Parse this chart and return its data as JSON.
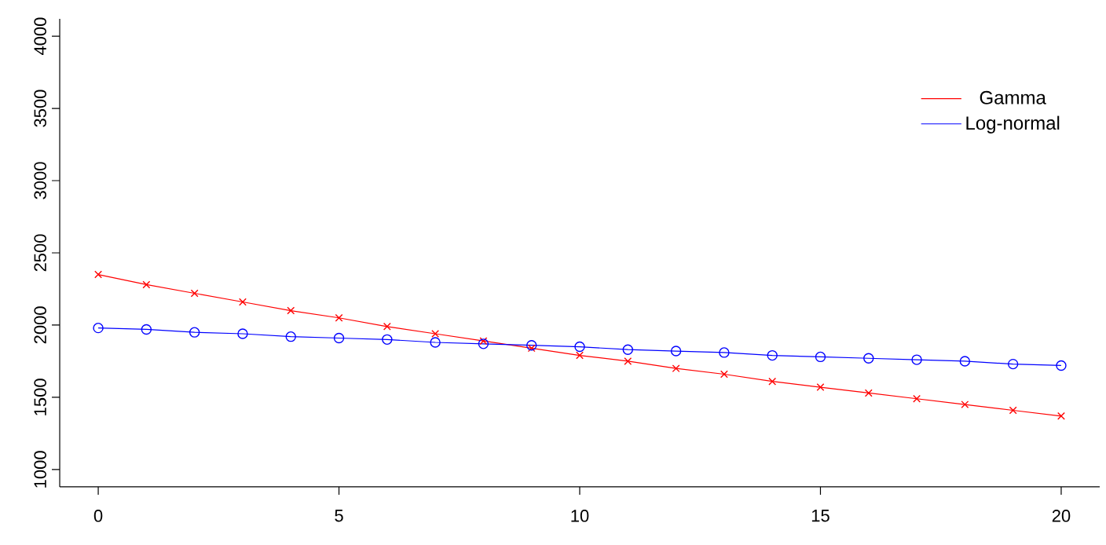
{
  "chart_data": {
    "type": "line",
    "x": [
      0,
      1,
      2,
      3,
      4,
      5,
      6,
      7,
      8,
      9,
      10,
      11,
      12,
      13,
      14,
      15,
      16,
      17,
      18,
      19,
      20
    ],
    "series": [
      {
        "name": "Gamma",
        "color": "#ff0000",
        "marker": "cross",
        "values": [
          2350,
          2280,
          2220,
          2160,
          2100,
          2050,
          1990,
          1940,
          1890,
          1840,
          1790,
          1750,
          1700,
          1660,
          1610,
          1570,
          1530,
          1490,
          1450,
          1410,
          1370
        ]
      },
      {
        "name": "Log-normal",
        "color": "#0000ff",
        "marker": "circle",
        "values": [
          1980,
          1970,
          1950,
          1940,
          1920,
          1910,
          1900,
          1880,
          1870,
          1860,
          1850,
          1830,
          1820,
          1810,
          1790,
          1780,
          1770,
          1760,
          1750,
          1730,
          1720
        ]
      }
    ],
    "xlim": [
      -0.8,
      20.8
    ],
    "ylim": [
      880,
      4120
    ],
    "xticks": [
      0,
      5,
      10,
      15,
      20
    ],
    "yticks": [
      1000,
      1500,
      2000,
      2500,
      3000,
      3500,
      4000
    ],
    "line_style": "solid",
    "legend": "top right",
    "grid": false
  }
}
